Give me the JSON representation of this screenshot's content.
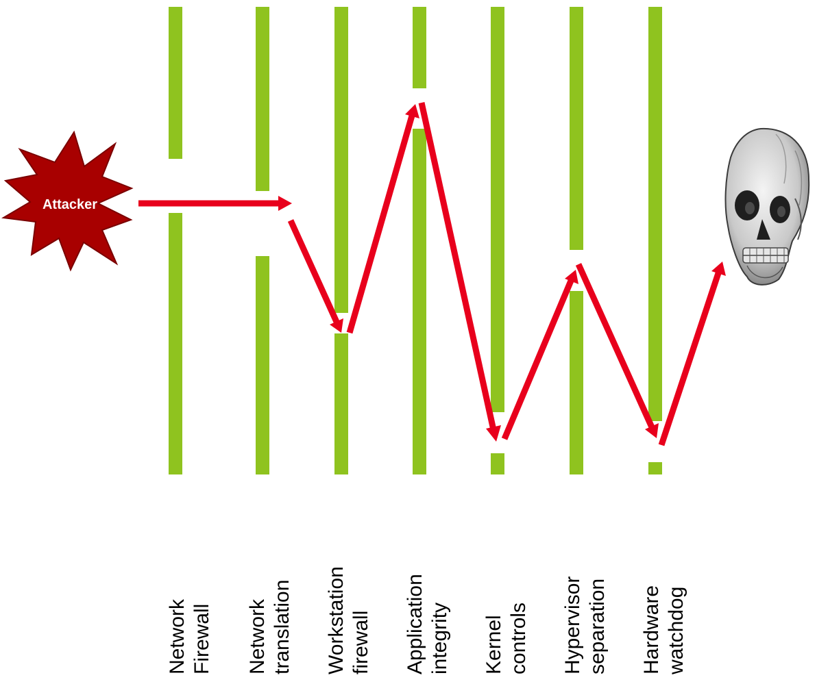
{
  "attacker": {
    "label": "Attacker",
    "color": "#a80000",
    "color_dark": "#7a0000"
  },
  "target": {
    "icon": "skull-icon"
  },
  "colors": {
    "barrier": "#8fc31f",
    "attack_path": "#e8001c",
    "text": "#000000"
  },
  "layers": [
    {
      "id": "network-firewall",
      "line1": "Network",
      "line2": "Firewall"
    },
    {
      "id": "network-translation",
      "line1": "Network",
      "line2": "translation"
    },
    {
      "id": "workstation-firewall",
      "line1": "Workstation",
      "line2": "firewall"
    },
    {
      "id": "application-integrity",
      "line1": "Application",
      "line2": "integrity"
    },
    {
      "id": "kernel-controls",
      "line1": "Kernel",
      "line2": "controls"
    },
    {
      "id": "hypervisor-separation",
      "line1": "Hypervisor",
      "line2": "separation"
    },
    {
      "id": "hardware-watchdog",
      "line1": "Hardware",
      "line2": "watchdog"
    }
  ]
}
